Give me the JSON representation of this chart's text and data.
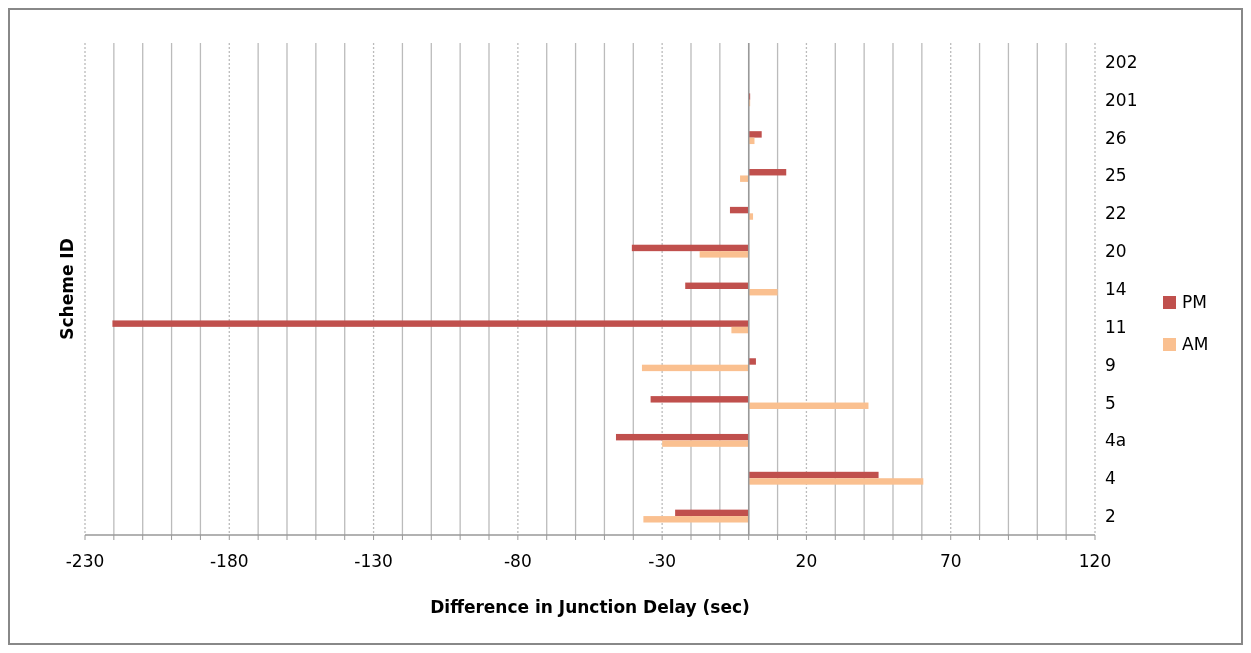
{
  "chart_data": {
    "type": "bar",
    "orientation": "horizontal",
    "xlabel": "Difference in Junction Delay (sec)",
    "ylabel": "Scheme ID",
    "categories": [
      "202",
      "201",
      "26",
      "25",
      "22",
      "20",
      "14",
      "11",
      "9",
      "5",
      "4a",
      "4",
      "2"
    ],
    "series": [
      {
        "name": "PM",
        "color": "#c0504d",
        "values": [
          null,
          0.5,
          4.5,
          13,
          -6.5,
          -40.5,
          -22,
          -220.5,
          2.5,
          -34,
          -46,
          45,
          -25.5
        ]
      },
      {
        "name": "AM",
        "color": "#fac090",
        "values": [
          null,
          0.5,
          2,
          -3,
          1.5,
          -17,
          10,
          -6,
          -37,
          41.5,
          -30,
          60.5,
          -36.5
        ]
      }
    ],
    "xlim": [
      -230,
      120
    ],
    "xticks": [
      -230,
      {
        "value": -220,
        "label": null
      },
      {
        "value": -210,
        "label": null
      },
      {
        "value": -200,
        "label": null
      },
      {
        "value": -190,
        "label": null
      },
      -180,
      {
        "value": -170,
        "label": null
      },
      {
        "value": -160,
        "label": null
      },
      {
        "value": -150,
        "label": null
      },
      {
        "value": -140,
        "label": null
      },
      -130,
      {
        "value": -120,
        "label": null
      },
      {
        "value": -110,
        "label": null
      },
      {
        "value": -100,
        "label": null
      },
      {
        "value": -90,
        "label": null
      },
      -80,
      {
        "value": -70,
        "label": null
      },
      {
        "value": -60,
        "label": null
      },
      {
        "value": -50,
        "label": null
      },
      {
        "value": -40,
        "label": null
      },
      -30,
      {
        "value": -20,
        "label": null
      },
      {
        "value": -10,
        "label": null
      },
      {
        "value": 0,
        "label": null
      },
      {
        "value": 10,
        "label": null
      },
      20,
      {
        "value": 30,
        "label": null
      },
      {
        "value": 40,
        "label": null
      },
      {
        "value": 50,
        "label": null
      },
      {
        "value": 60,
        "label": null
      },
      70,
      {
        "value": 80,
        "label": null
      },
      {
        "value": 90,
        "label": null
      },
      {
        "value": 100,
        "label": null
      },
      {
        "value": 110,
        "label": null
      },
      120
    ],
    "grid": "x",
    "legend": "right"
  }
}
